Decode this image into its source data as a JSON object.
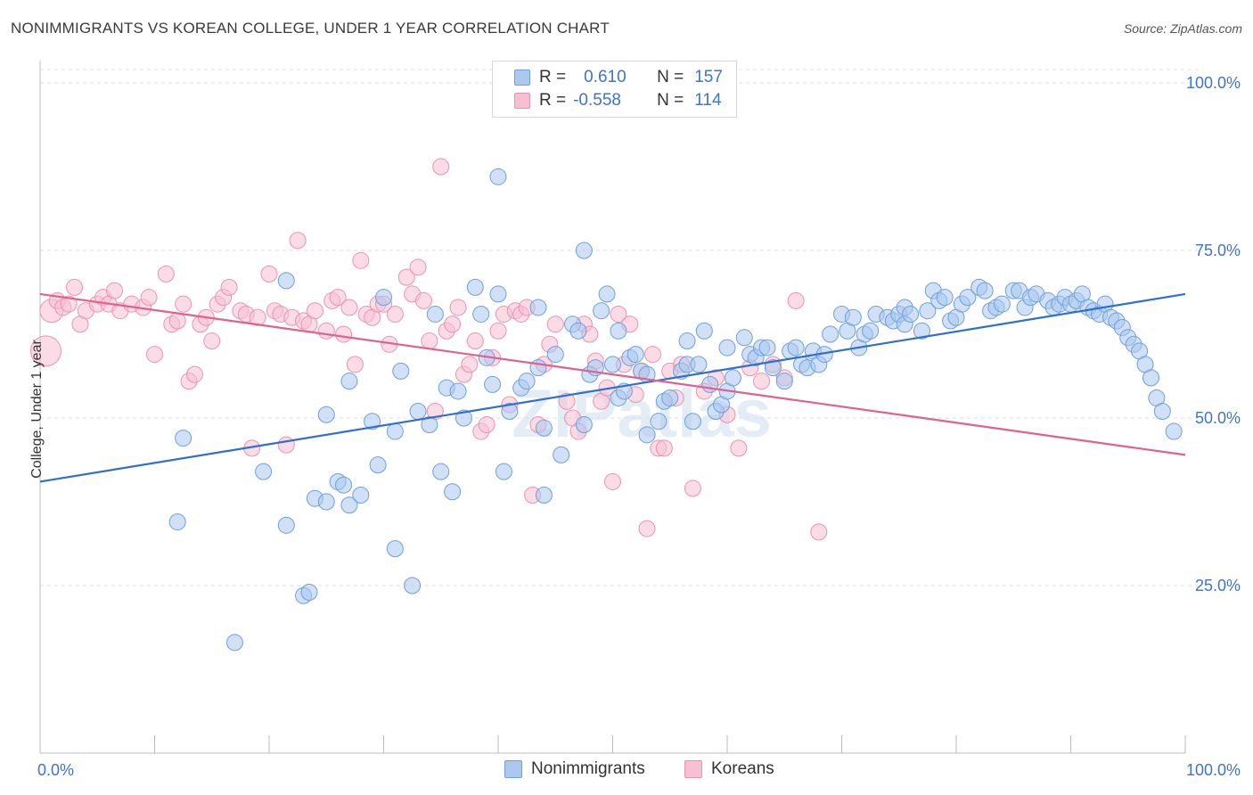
{
  "title": "NONIMMIGRANTS VS KOREAN COLLEGE, UNDER 1 YEAR CORRELATION CHART",
  "source": "Source: ZipAtlas.com",
  "watermark": "ZIPatlas",
  "legend": {
    "rows": [
      {
        "r_label": "R =",
        "r_value": "0.610",
        "n_label": "N =",
        "n_value": "157"
      },
      {
        "r_label": "R =",
        "r_value": "-0.558",
        "n_label": "N =",
        "n_value": "114"
      }
    ]
  },
  "bottom_legend": {
    "series1": "Nonimmigrants",
    "series2": "Koreans"
  },
  "colors": {
    "blue_fill": "#aac8f0",
    "blue_stroke": "#6f9fd8",
    "blue_line": "#2f6fce",
    "pink_fill": "#f7c0d2",
    "pink_stroke": "#e893b0",
    "pink_line": "#e0608e",
    "tick_text": "#3f74c9"
  },
  "chart_data": {
    "type": "scatter",
    "title": "NONIMMIGRANTS VS KOREAN COLLEGE, UNDER 1 YEAR CORRELATION CHART",
    "xlabel": "",
    "ylabel": "College, Under 1 year",
    "xlim": [
      0,
      100
    ],
    "ylim": [
      0,
      102
    ],
    "x_tick_labels": [
      "0.0%",
      "100.0%"
    ],
    "y_tick_labels": [
      "25.0%",
      "50.0%",
      "75.0%",
      "100.0%"
    ],
    "y_ticks": [
      25,
      50,
      75,
      100
    ],
    "grid": true,
    "legend_position": "top-center",
    "series": [
      {
        "name": "Nonimmigrants",
        "r": 0.61,
        "n": 157,
        "trend": {
          "x": [
            0,
            100
          ],
          "y": [
            40.5,
            68.5
          ]
        },
        "points": [
          [
            12,
            34.5
          ],
          [
            12.5,
            47
          ],
          [
            17,
            16.5
          ],
          [
            19.5,
            42
          ],
          [
            21.5,
            70.5
          ],
          [
            21.5,
            34
          ],
          [
            23,
            23.5
          ],
          [
            23.5,
            24
          ],
          [
            24,
            38
          ],
          [
            25,
            37.5
          ],
          [
            25,
            50.5
          ],
          [
            26,
            40.5
          ],
          [
            26.5,
            40
          ],
          [
            27,
            37
          ],
          [
            27,
            55.5
          ],
          [
            28,
            38.5
          ],
          [
            29,
            49.5
          ],
          [
            29.5,
            43
          ],
          [
            30,
            68
          ],
          [
            31,
            30.5
          ],
          [
            31,
            48
          ],
          [
            31.5,
            57
          ],
          [
            32.5,
            25
          ],
          [
            33,
            51
          ],
          [
            34,
            49
          ],
          [
            34.5,
            65.5
          ],
          [
            35,
            42
          ],
          [
            35.5,
            54.5
          ],
          [
            36,
            39
          ],
          [
            36.5,
            54
          ],
          [
            37,
            50
          ],
          [
            38,
            69.5
          ],
          [
            38.5,
            65.5
          ],
          [
            39,
            59
          ],
          [
            39.5,
            55
          ],
          [
            40,
            68.5
          ],
          [
            40.5,
            42
          ],
          [
            40,
            86
          ],
          [
            41,
            51
          ],
          [
            42,
            54.5
          ],
          [
            42.5,
            55.5
          ],
          [
            43.5,
            57.5
          ],
          [
            43.5,
            66.5
          ],
          [
            44,
            38.5
          ],
          [
            44,
            48.5
          ],
          [
            45,
            59.5
          ],
          [
            45.5,
            44.5
          ],
          [
            46.5,
            64
          ],
          [
            47,
            63
          ],
          [
            47.5,
            49
          ],
          [
            47.5,
            75
          ],
          [
            48,
            56.5
          ],
          [
            48.5,
            57.5
          ],
          [
            49,
            66
          ],
          [
            49.5,
            68.5
          ],
          [
            50,
            58
          ],
          [
            50.5,
            63
          ],
          [
            50.5,
            53
          ],
          [
            51,
            54
          ],
          [
            51.5,
            59
          ],
          [
            52,
            59.5
          ],
          [
            52.5,
            57
          ],
          [
            53,
            56.5
          ],
          [
            53,
            47.5
          ],
          [
            54,
            49.5
          ],
          [
            54.5,
            52.5
          ],
          [
            55,
            53
          ],
          [
            56,
            57
          ],
          [
            56.5,
            58
          ],
          [
            56.5,
            61.5
          ],
          [
            57,
            49.5
          ],
          [
            57.5,
            58
          ],
          [
            58,
            63
          ],
          [
            58.5,
            55
          ],
          [
            59,
            51
          ],
          [
            59.5,
            52
          ],
          [
            60,
            54
          ],
          [
            60.5,
            56
          ],
          [
            60,
            60.5
          ],
          [
            61.5,
            62
          ],
          [
            62,
            59.5
          ],
          [
            62.5,
            59
          ],
          [
            63,
            60.5
          ],
          [
            63.5,
            60.5
          ],
          [
            64,
            57.5
          ],
          [
            65,
            55.5
          ],
          [
            65.5,
            60
          ],
          [
            66,
            60.5
          ],
          [
            66.5,
            58
          ],
          [
            67,
            57.5
          ],
          [
            67.5,
            60
          ],
          [
            68,
            58
          ],
          [
            68.5,
            59.5
          ],
          [
            69,
            62.5
          ],
          [
            70,
            65.5
          ],
          [
            70.5,
            63
          ],
          [
            71,
            65
          ],
          [
            71.5,
            60.5
          ],
          [
            72,
            62.5
          ],
          [
            72.5,
            63
          ],
          [
            73,
            65.5
          ],
          [
            74,
            65
          ],
          [
            74.5,
            64.5
          ],
          [
            75,
            65.5
          ],
          [
            75.5,
            64
          ],
          [
            75.5,
            66.5
          ],
          [
            76,
            65.5
          ],
          [
            77,
            63
          ],
          [
            77.5,
            66
          ],
          [
            78,
            69
          ],
          [
            78.5,
            67.5
          ],
          [
            79,
            68
          ],
          [
            79.5,
            64.5
          ],
          [
            80,
            65
          ],
          [
            80.5,
            67
          ],
          [
            81,
            68
          ],
          [
            82,
            69.5
          ],
          [
            82.5,
            69
          ],
          [
            83,
            66
          ],
          [
            83.5,
            66.5
          ],
          [
            84,
            67
          ],
          [
            85,
            69
          ],
          [
            85.5,
            69
          ],
          [
            86,
            66.5
          ],
          [
            86.5,
            68
          ],
          [
            87,
            68.5
          ],
          [
            88,
            67.5
          ],
          [
            88.5,
            66.5
          ],
          [
            89,
            67
          ],
          [
            89.5,
            68
          ],
          [
            90,
            67
          ],
          [
            90.5,
            67.5
          ],
          [
            91,
            68.5
          ],
          [
            91.5,
            66.5
          ],
          [
            92,
            66
          ],
          [
            92.5,
            65.5
          ],
          [
            93,
            67
          ],
          [
            93.5,
            65
          ],
          [
            94,
            64.5
          ],
          [
            94.5,
            63.5
          ],
          [
            95,
            62
          ],
          [
            95.5,
            61
          ],
          [
            96,
            60
          ],
          [
            96.5,
            58
          ],
          [
            97,
            56
          ],
          [
            97.5,
            53
          ],
          [
            98,
            51
          ],
          [
            99,
            48
          ]
        ]
      },
      {
        "name": "Koreans",
        "r": -0.558,
        "n": 114,
        "trend": {
          "x": [
            0,
            100
          ],
          "y": [
            68.5,
            44.5
          ]
        },
        "points": [
          [
            0.5,
            60
          ],
          [
            1,
            66
          ],
          [
            1.5,
            67.5
          ],
          [
            2,
            66.5
          ],
          [
            2.5,
            67
          ],
          [
            3,
            69.5
          ],
          [
            3.5,
            64
          ],
          [
            4,
            66
          ],
          [
            5,
            67
          ],
          [
            5.5,
            68
          ],
          [
            6,
            67
          ],
          [
            6.5,
            69
          ],
          [
            7,
            66
          ],
          [
            8,
            67
          ],
          [
            9,
            66.5
          ],
          [
            9.5,
            68
          ],
          [
            10,
            59.5
          ],
          [
            11,
            71.5
          ],
          [
            11.5,
            64
          ],
          [
            12,
            64.5
          ],
          [
            12.5,
            67
          ],
          [
            13,
            55.5
          ],
          [
            13.5,
            56.5
          ],
          [
            14,
            64
          ],
          [
            14.5,
            65
          ],
          [
            15,
            61.5
          ],
          [
            15.5,
            67
          ],
          [
            16,
            68
          ],
          [
            16.5,
            69.5
          ],
          [
            17.5,
            66
          ],
          [
            18,
            65.5
          ],
          [
            18.5,
            45.5
          ],
          [
            19,
            65
          ],
          [
            20,
            71.5
          ],
          [
            20.5,
            66
          ],
          [
            21,
            65.5
          ],
          [
            21.5,
            46
          ],
          [
            22,
            65
          ],
          [
            22.5,
            76.5
          ],
          [
            23,
            64.5
          ],
          [
            23.5,
            64
          ],
          [
            24,
            66
          ],
          [
            25,
            63
          ],
          [
            25.5,
            67.5
          ],
          [
            26,
            68
          ],
          [
            26.5,
            62.5
          ],
          [
            27,
            66.5
          ],
          [
            27.5,
            58
          ],
          [
            28,
            73.5
          ],
          [
            28.5,
            65.5
          ],
          [
            29,
            65
          ],
          [
            29.5,
            67
          ],
          [
            30,
            67
          ],
          [
            30.5,
            61
          ],
          [
            31,
            65.5
          ],
          [
            32,
            71
          ],
          [
            32.5,
            68.5
          ],
          [
            33,
            72.5
          ],
          [
            33.5,
            67.5
          ],
          [
            34,
            61.5
          ],
          [
            34.5,
            51
          ],
          [
            35,
            87.5
          ],
          [
            35.5,
            63
          ],
          [
            36,
            64
          ],
          [
            36.5,
            66.5
          ],
          [
            37,
            56.5
          ],
          [
            37.5,
            58
          ],
          [
            38,
            61.5
          ],
          [
            38.5,
            48
          ],
          [
            39,
            49
          ],
          [
            39.5,
            59
          ],
          [
            40,
            63
          ],
          [
            40.5,
            65.5
          ],
          [
            41,
            52
          ],
          [
            41.5,
            66
          ],
          [
            42,
            65.5
          ],
          [
            42.5,
            66.5
          ],
          [
            43,
            38.5
          ],
          [
            43.5,
            49
          ],
          [
            44,
            58
          ],
          [
            44.5,
            61
          ],
          [
            45,
            64
          ],
          [
            46,
            52.5
          ],
          [
            46.5,
            50
          ],
          [
            47,
            48
          ],
          [
            47.5,
            64
          ],
          [
            48,
            62.5
          ],
          [
            48.5,
            58.5
          ],
          [
            49,
            52.5
          ],
          [
            49.5,
            54.5
          ],
          [
            50,
            40.5
          ],
          [
            50.5,
            65.5
          ],
          [
            51,
            58
          ],
          [
            51.5,
            64
          ],
          [
            52,
            53.5
          ],
          [
            52.5,
            57
          ],
          [
            53,
            33.5
          ],
          [
            53.5,
            59.5
          ],
          [
            54,
            45.5
          ],
          [
            54.5,
            45.5
          ],
          [
            55,
            57
          ],
          [
            55.5,
            53
          ],
          [
            56,
            58
          ],
          [
            57,
            39.5
          ],
          [
            58,
            54
          ],
          [
            59,
            56
          ],
          [
            60,
            50.5
          ],
          [
            61,
            45.5
          ],
          [
            62,
            57.5
          ],
          [
            63,
            55.5
          ],
          [
            64,
            58
          ],
          [
            65,
            56
          ],
          [
            66,
            67.5
          ],
          [
            68,
            33
          ]
        ]
      }
    ]
  }
}
